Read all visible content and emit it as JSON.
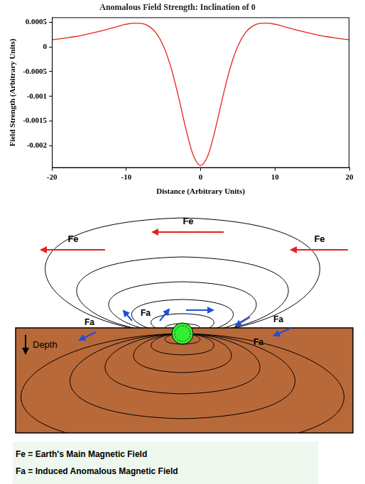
{
  "chart_data": {
    "type": "line",
    "title": "Anomalous Field Strength: Inclination of 0",
    "x_label": "Distance (Arbitrary Units)",
    "y_label": "Field Strength (Arbitrary Units)",
    "x": [
      -20,
      -19,
      -18,
      -17,
      -16,
      -15,
      -14,
      -13,
      -12,
      -11,
      -10,
      -9,
      -8,
      -7,
      -6,
      -5,
      -4,
      -3,
      -2,
      -1,
      0,
      1,
      2,
      3,
      4,
      5,
      6,
      7,
      8,
      9,
      10,
      11,
      12,
      13,
      14,
      15,
      16,
      17,
      18,
      19,
      20
    ],
    "values": [
      0.000145,
      0.000163,
      0.000184,
      0.000207,
      0.000235,
      0.000266,
      0.000301,
      0.000339,
      0.00038,
      0.000422,
      0.000459,
      0.000483,
      0.000479,
      0.000424,
      0.000284,
      1.8e-05,
      -0.000411,
      -0.000996,
      -0.00165,
      -0.00219,
      -0.0024,
      -0.00219,
      -0.00165,
      -0.000996,
      -0.000411,
      1.8e-05,
      0.000284,
      0.000424,
      0.000479,
      0.000483,
      0.000459,
      0.000422,
      0.00038,
      0.000339,
      0.000301,
      0.000266,
      0.000235,
      0.000207,
      0.000184,
      0.000163,
      0.000145
    ],
    "color": "#e8221c",
    "xlim": [
      -20,
      20
    ],
    "xticks": [
      -20,
      -10,
      0,
      10,
      20
    ],
    "ylim": [
      -0.00245,
      0.0006
    ],
    "yticks": [
      -0.002,
      -0.0015,
      -0.001,
      -0.0005,
      0,
      0.0005
    ],
    "grid": false
  },
  "diagram": {
    "fe_arrows": [
      "Fe",
      "Fe",
      "Fe"
    ],
    "fa_labels": [
      "Fa",
      "Fa",
      "Fa",
      "Fa"
    ],
    "depth_label": "Depth",
    "key": [
      "Fe = Earth's Main Magnetic Field",
      "Fa = Induced Anomalous Magnetic Field"
    ]
  }
}
